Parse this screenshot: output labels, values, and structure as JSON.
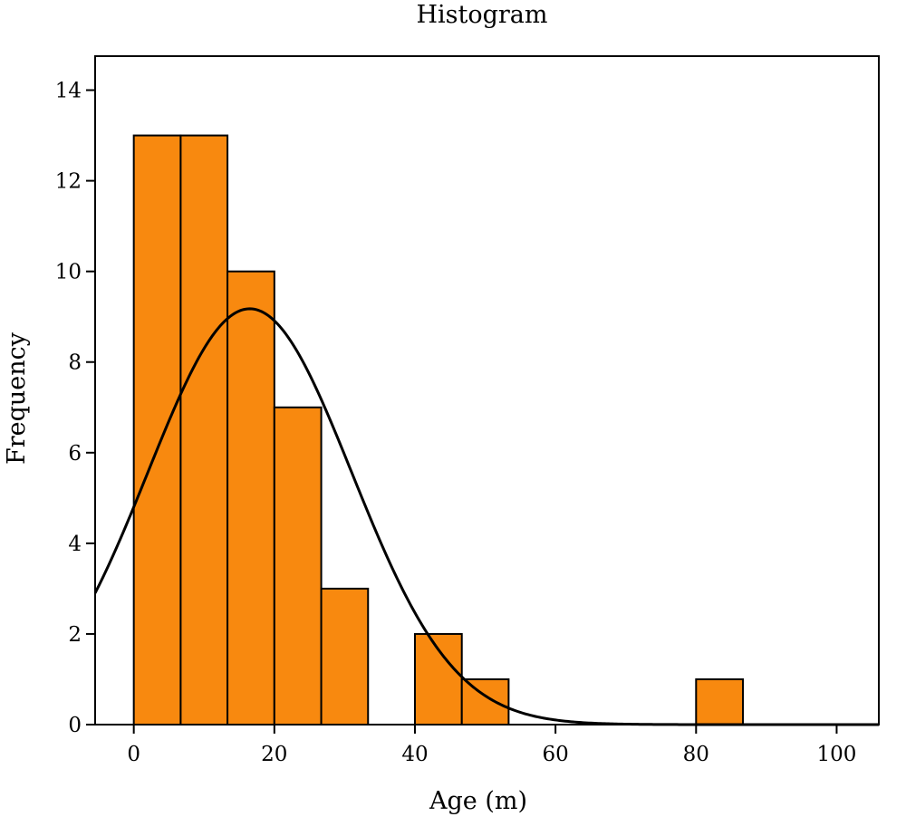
{
  "chart_data": {
    "type": "bar",
    "title": "Histogram",
    "xlabel": "Age (m)",
    "ylabel": "Frequency",
    "xlim": [
      -5.5,
      106
    ],
    "ylim": [
      0,
      14.75
    ],
    "x_ticks": [
      0,
      20,
      40,
      60,
      80,
      100
    ],
    "x_tick_labels": [
      "0",
      "20",
      "40",
      "60",
      "80",
      "100"
    ],
    "y_ticks": [
      0,
      2,
      4,
      6,
      8,
      10,
      12,
      14
    ],
    "y_tick_labels": [
      "0",
      "2",
      "4",
      "6",
      "8",
      "10",
      "12",
      "14"
    ],
    "grid": false,
    "bin_width": 6.67,
    "bins": [
      {
        "start": 0,
        "end": 6.67,
        "count": 13
      },
      {
        "start": 6.67,
        "end": 13.33,
        "count": 13
      },
      {
        "start": 13.33,
        "end": 20,
        "count": 10
      },
      {
        "start": 20,
        "end": 26.67,
        "count": 7
      },
      {
        "start": 26.67,
        "end": 33.33,
        "count": 3
      },
      {
        "start": 33.33,
        "end": 40,
        "count": 0
      },
      {
        "start": 40,
        "end": 46.67,
        "count": 2
      },
      {
        "start": 46.67,
        "end": 53.33,
        "count": 1
      },
      {
        "start": 53.33,
        "end": 60,
        "count": 0
      },
      {
        "start": 60,
        "end": 66.67,
        "count": 0
      },
      {
        "start": 66.67,
        "end": 73.33,
        "count": 0
      },
      {
        "start": 73.33,
        "end": 80,
        "count": 0
      },
      {
        "start": 80,
        "end": 86.67,
        "count": 1
      }
    ],
    "normal_curve": {
      "mean": 16.5,
      "sd": 14.5,
      "n": 50
    },
    "colors": {
      "bar_fill": "#f8890f",
      "bar_edge": "#000000",
      "curve": "#000000",
      "frame": "#000000"
    }
  }
}
